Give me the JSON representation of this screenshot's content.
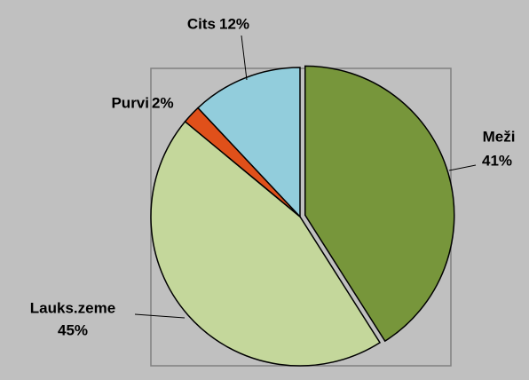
{
  "chart_data": {
    "type": "pie",
    "categories": [
      "Meži",
      "Lauks.zeme",
      "Purvi",
      "Cits"
    ],
    "values": [
      41,
      45,
      2,
      12
    ],
    "value_labels": [
      "41%",
      "45%",
      "2%",
      "12%"
    ],
    "colors": [
      "#77963b",
      "#c4d79b",
      "#e0501a",
      "#92cddc"
    ]
  }
}
